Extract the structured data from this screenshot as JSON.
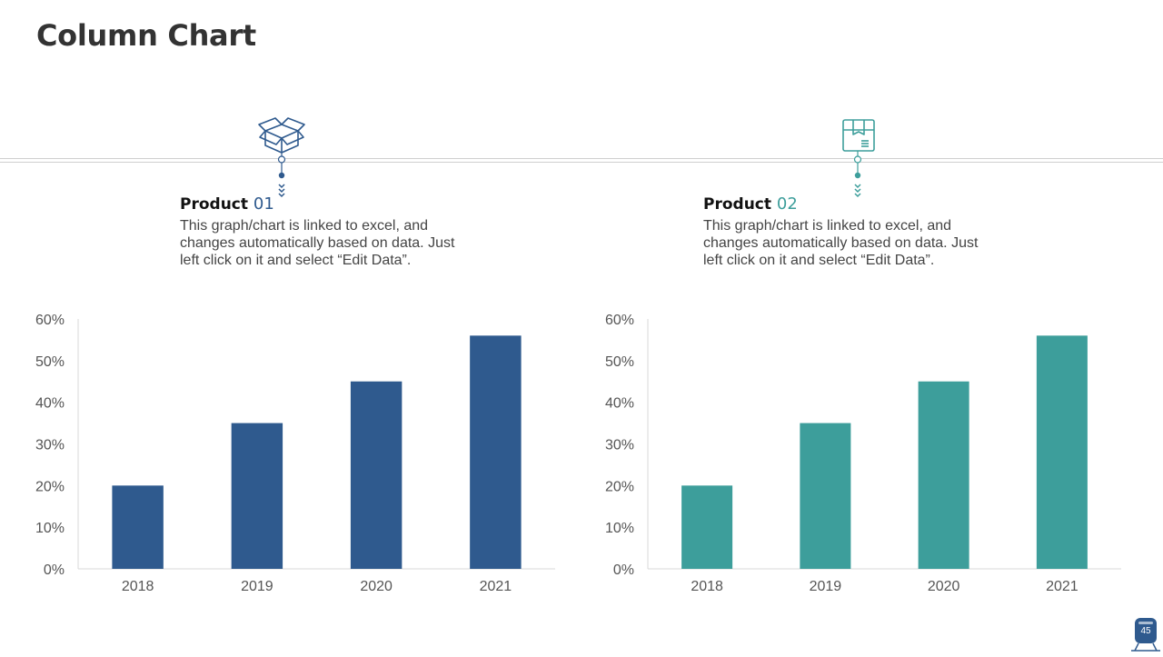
{
  "title": "Column Chart",
  "products": [
    {
      "label": "Product",
      "number": "01",
      "color": "#2f5a8e",
      "description": "This graph/chart is linked to excel, and changes automatically based on data. Just left click on it and select “Edit Data”.",
      "icon": "open-box-icon"
    },
    {
      "label": "Product",
      "number": "02",
      "color": "#3d9e9b",
      "description": "This graph/chart is linked to excel, and changes automatically based on data. Just left click on it and select “Edit Data”.",
      "icon": "package-box-icon"
    }
  ],
  "chart_data": [
    {
      "type": "bar",
      "title": "",
      "xlabel": "",
      "ylabel": "",
      "categories": [
        "2018",
        "2019",
        "2020",
        "2021"
      ],
      "values": [
        20,
        35,
        45,
        56
      ],
      "ylim": [
        0,
        60
      ],
      "yticks": [
        "0%",
        "10%",
        "20%",
        "30%",
        "40%",
        "50%",
        "60%"
      ],
      "color": "#2f5a8e",
      "grid": false
    },
    {
      "type": "bar",
      "title": "",
      "xlabel": "",
      "ylabel": "",
      "categories": [
        "2018",
        "2019",
        "2020",
        "2021"
      ],
      "values": [
        20,
        35,
        45,
        56
      ],
      "ylim": [
        0,
        60
      ],
      "yticks": [
        "0%",
        "10%",
        "20%",
        "30%",
        "40%",
        "50%",
        "60%"
      ],
      "color": "#3d9e9b",
      "grid": false
    }
  ],
  "page_number": "45"
}
